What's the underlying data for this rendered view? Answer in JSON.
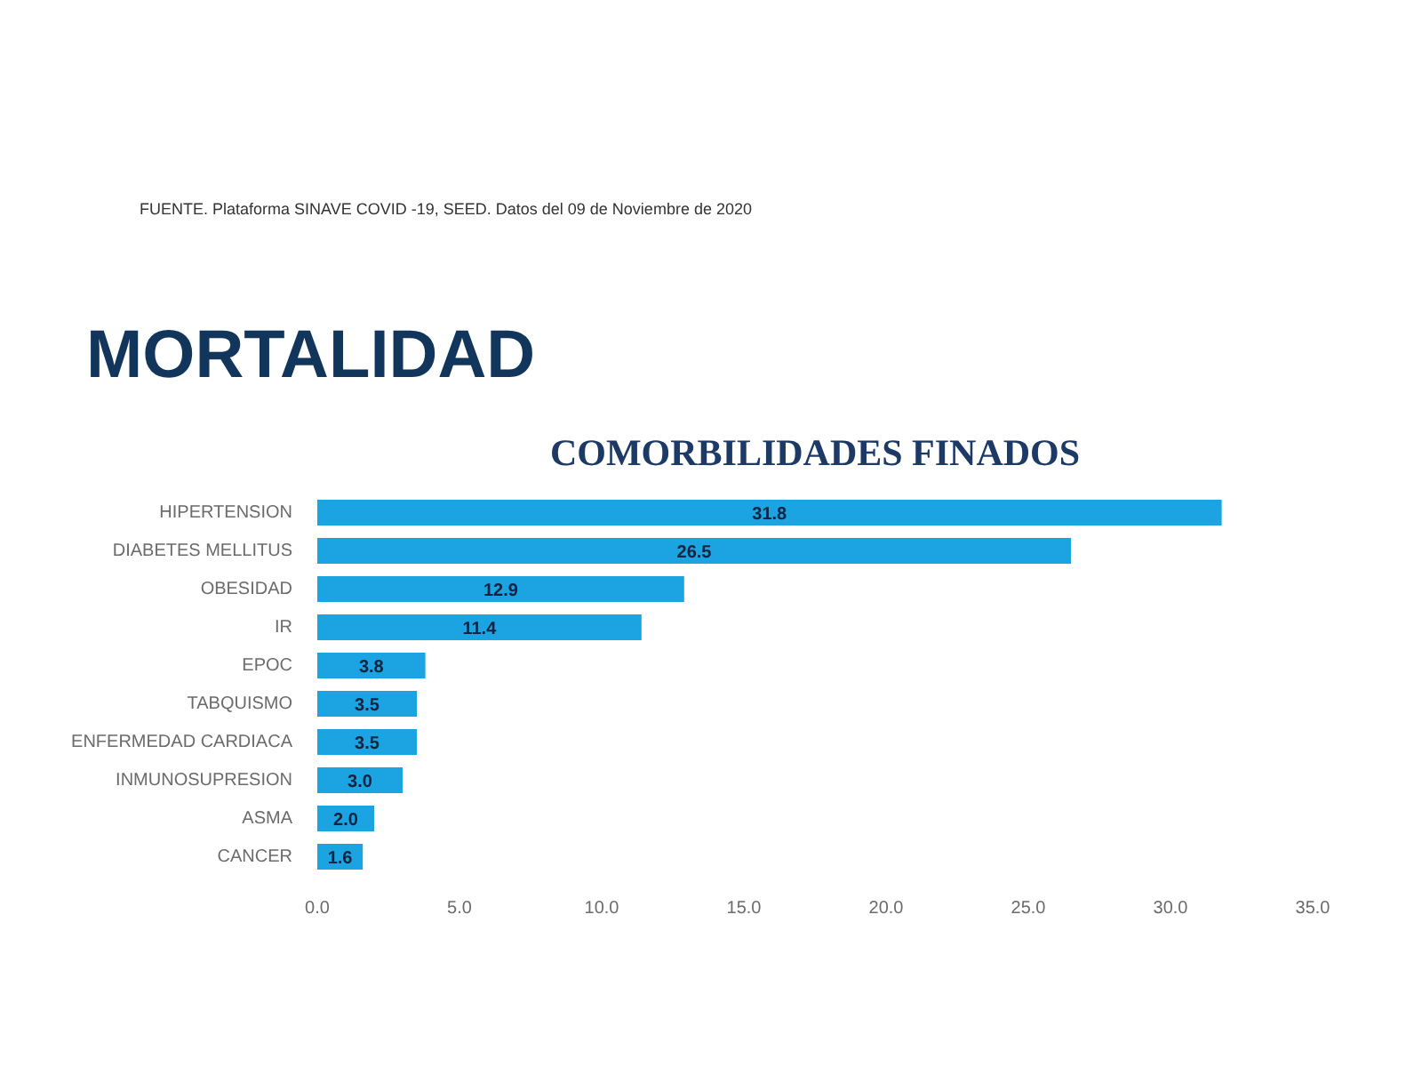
{
  "chart_data": {
    "type": "bar",
    "orientation": "horizontal",
    "title": "MORTALIDAD",
    "subtitle": "COMORBILIDADES FINADOS",
    "annotations": [
      "FUENTE. Plataforma SINAVE COVID -19, SEED. Datos del 09 de Noviembre de 2020"
    ],
    "categories": [
      "HIPERTENSION",
      "DIABETES MELLITUS",
      "OBESIDAD",
      "IR",
      "EPOC",
      "TABQUISMO",
      "ENFERMEDAD CARDIACA",
      "INMUNOSUPRESION",
      "ASMA",
      "CANCER"
    ],
    "values": [
      31.8,
      26.5,
      12.9,
      11.4,
      3.8,
      3.5,
      3.5,
      3.0,
      2.0,
      1.6
    ],
    "value_labels": [
      "31.8",
      "26.5",
      "12.9",
      "11.4",
      "3.8",
      "3.5",
      "3.5",
      "3.0",
      "2.0",
      "1.6"
    ],
    "color": "#1ba3e2",
    "xlim": [
      0,
      35
    ],
    "xticks": [
      {
        "value": 0,
        "label": "0.0"
      },
      {
        "value": 5,
        "label": "5.0"
      },
      {
        "value": 10,
        "label": "10.0"
      },
      {
        "value": 15,
        "label": "15.0"
      },
      {
        "value": 20,
        "label": "20.0"
      },
      {
        "value": 25,
        "label": "25.0"
      },
      {
        "value": 30,
        "label": "30.0"
      },
      {
        "value": 35,
        "label": "35.0"
      }
    ]
  }
}
